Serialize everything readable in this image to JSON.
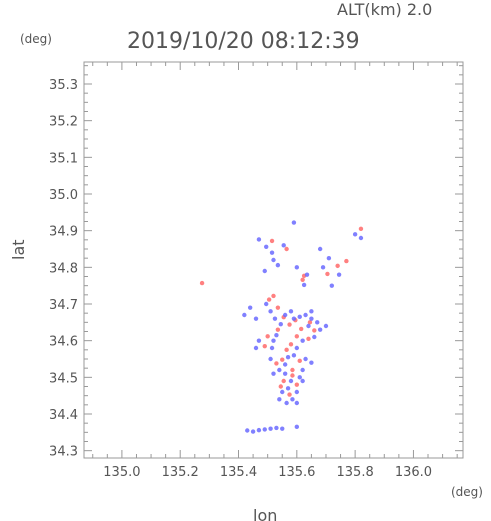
{
  "header": {
    "altitude": "ALT(km) 2.0",
    "timestamp": "2019/10/20 08:12:39"
  },
  "chart_data": {
    "type": "scatter",
    "title": "2019/10/20 08:12:39",
    "subtitle": "ALT(km) 2.0",
    "xlabel": "lon",
    "ylabel": "lat",
    "xunit": "(deg)",
    "yunit": "(deg)",
    "xlim": [
      134.87,
      136.17
    ],
    "ylim": [
      34.28,
      35.36
    ],
    "xticks": [
      135.0,
      135.2,
      135.4,
      135.6,
      135.8,
      136.0
    ],
    "xtick_labels": [
      "135.0",
      "135.2",
      "135.4",
      "135.6",
      "135.8",
      "136.0"
    ],
    "yticks": [
      34.3,
      34.4,
      34.5,
      34.6,
      34.7,
      34.8,
      34.9,
      35.0,
      35.1,
      35.2,
      35.3
    ],
    "ytick_labels": [
      "34.3",
      "34.4",
      "34.5",
      "34.6",
      "34.7",
      "34.8",
      "34.9",
      "35.0",
      "35.1",
      "35.2",
      "35.3"
    ],
    "grid": false,
    "colors": {
      "positive": "#ff6a6a",
      "negative": "#6a6aff"
    },
    "series": [
      {
        "color": "#ff6a6a",
        "points": [
          [
            135.275,
            34.757
          ],
          [
            135.505,
            34.712
          ],
          [
            135.52,
            34.722
          ],
          [
            135.535,
            34.69
          ],
          [
            135.555,
            34.664
          ],
          [
            135.575,
            34.644
          ],
          [
            135.595,
            34.656
          ],
          [
            135.615,
            34.632
          ],
          [
            135.6,
            34.612
          ],
          [
            135.58,
            34.59
          ],
          [
            135.565,
            34.575
          ],
          [
            135.55,
            34.548
          ],
          [
            135.53,
            34.538
          ],
          [
            135.555,
            34.49
          ],
          [
            135.545,
            34.475
          ],
          [
            135.585,
            34.505
          ],
          [
            135.6,
            34.48
          ],
          [
            135.5,
            34.612
          ],
          [
            135.49,
            34.585
          ],
          [
            135.645,
            34.65
          ],
          [
            135.66,
            34.628
          ],
          [
            135.64,
            34.605
          ],
          [
            135.625,
            34.777
          ],
          [
            135.705,
            34.782
          ],
          [
            135.74,
            34.804
          ],
          [
            135.77,
            34.817
          ],
          [
            135.82,
            34.905
          ],
          [
            135.515,
            34.872
          ],
          [
            135.565,
            34.85
          ],
          [
            135.62,
            34.766
          ],
          [
            135.585,
            34.52
          ],
          [
            135.575,
            34.453
          ],
          [
            135.535,
            34.63
          ],
          [
            135.61,
            34.545
          ]
        ]
      },
      {
        "color": "#6a6aff",
        "points": [
          [
            135.59,
            34.922
          ],
          [
            135.47,
            34.876
          ],
          [
            135.495,
            34.856
          ],
          [
            135.515,
            34.84
          ],
          [
            135.52,
            34.82
          ],
          [
            135.535,
            34.806
          ],
          [
            135.49,
            34.79
          ],
          [
            135.555,
            34.86
          ],
          [
            135.6,
            34.8
          ],
          [
            135.635,
            34.78
          ],
          [
            135.625,
            34.752
          ],
          [
            135.68,
            34.85
          ],
          [
            135.71,
            34.825
          ],
          [
            135.69,
            34.8
          ],
          [
            135.72,
            34.75
          ],
          [
            135.745,
            34.78
          ],
          [
            135.8,
            34.89
          ],
          [
            135.82,
            34.88
          ],
          [
            135.495,
            34.7
          ],
          [
            135.51,
            34.68
          ],
          [
            135.525,
            34.66
          ],
          [
            135.545,
            34.645
          ],
          [
            135.56,
            34.67
          ],
          [
            135.58,
            34.68
          ],
          [
            135.59,
            34.66
          ],
          [
            135.61,
            34.665
          ],
          [
            135.63,
            34.67
          ],
          [
            135.65,
            34.66
          ],
          [
            135.67,
            34.65
          ],
          [
            135.68,
            34.63
          ],
          [
            135.66,
            34.61
          ],
          [
            135.62,
            34.6
          ],
          [
            135.6,
            34.58
          ],
          [
            135.59,
            34.56
          ],
          [
            135.57,
            34.555
          ],
          [
            135.56,
            34.535
          ],
          [
            135.54,
            34.52
          ],
          [
            135.56,
            34.51
          ],
          [
            135.58,
            34.49
          ],
          [
            135.6,
            34.46
          ],
          [
            135.57,
            34.47
          ],
          [
            135.55,
            34.46
          ],
          [
            135.54,
            34.44
          ],
          [
            135.565,
            34.43
          ],
          [
            135.52,
            34.51
          ],
          [
            135.51,
            34.55
          ],
          [
            135.515,
            34.58
          ],
          [
            135.47,
            34.6
          ],
          [
            135.46,
            34.66
          ],
          [
            135.44,
            34.69
          ],
          [
            135.42,
            34.67
          ],
          [
            135.46,
            34.58
          ],
          [
            135.52,
            34.6
          ],
          [
            135.53,
            34.615
          ],
          [
            135.65,
            34.54
          ],
          [
            135.63,
            34.55
          ],
          [
            135.62,
            34.52
          ],
          [
            135.61,
            34.5
          ],
          [
            135.62,
            34.49
          ],
          [
            135.6,
            34.43
          ],
          [
            135.585,
            34.44
          ],
          [
            135.43,
            34.355
          ],
          [
            135.45,
            34.352
          ],
          [
            135.47,
            34.356
          ],
          [
            135.49,
            34.358
          ],
          [
            135.51,
            34.36
          ],
          [
            135.53,
            34.362
          ],
          [
            135.55,
            34.36
          ],
          [
            135.6,
            34.365
          ],
          [
            135.64,
            34.64
          ],
          [
            135.65,
            34.68
          ],
          [
            135.7,
            34.64
          ]
        ]
      }
    ]
  }
}
